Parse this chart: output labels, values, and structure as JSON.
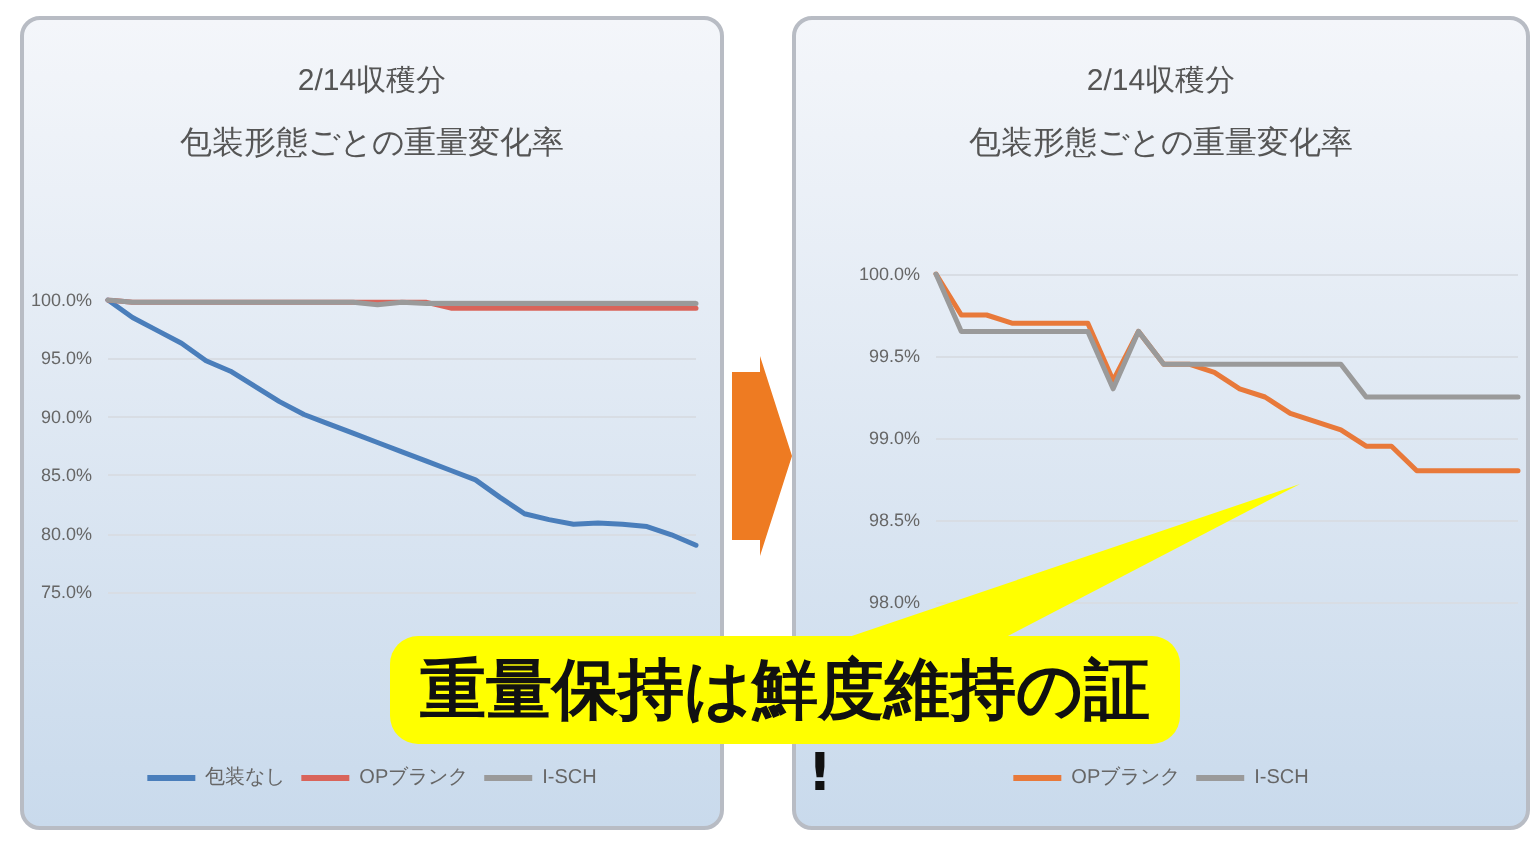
{
  "chart_data": [
    {
      "type": "line",
      "title": "2/14収穫分",
      "subtitle": "包装形態ごとの重量変化率",
      "categories": [
        null,
        null,
        null,
        null,
        null,
        null,
        null,
        null,
        null,
        null,
        null,
        null,
        null,
        null,
        null,
        null,
        null,
        null,
        null,
        null,
        null,
        null,
        null,
        null,
        null
      ],
      "series": [
        {
          "name": "包装なし",
          "color": "#4a7ebb",
          "values": [
            100,
            98.5,
            97.4,
            96.3,
            94.8,
            93.9,
            92.6,
            91.3,
            90.2,
            89.4,
            88.6,
            87.8,
            87.0,
            86.2,
            85.4,
            84.6,
            83.1,
            81.7,
            81.2,
            80.8,
            80.9,
            80.8,
            80.6,
            79.9,
            79.0
          ]
        },
        {
          "name": "OPブランク",
          "color": "#d9645a",
          "values": [
            100,
            99.8,
            99.8,
            99.8,
            99.8,
            99.8,
            99.8,
            99.8,
            99.8,
            99.8,
            99.8,
            99.8,
            99.8,
            99.8,
            99.3,
            99.3,
            99.3,
            99.3,
            99.3,
            99.3,
            99.3,
            99.3,
            99.3,
            99.3,
            99.3
          ]
        },
        {
          "name": "I-SCH",
          "color": "#9a9a9a",
          "values": [
            100,
            99.8,
            99.8,
            99.8,
            99.8,
            99.8,
            99.8,
            99.8,
            99.8,
            99.8,
            99.8,
            99.6,
            99.8,
            99.7,
            99.7,
            99.7,
            99.7,
            99.7,
            99.7,
            99.7,
            99.7,
            99.7,
            99.7,
            99.7,
            99.7
          ]
        }
      ],
      "ylim": [
        75,
        100
      ],
      "yticks": [
        {
          "value": 75,
          "label": "75.0%"
        },
        {
          "value": 80,
          "label": "80.0%"
        },
        {
          "value": 85,
          "label": "85.0%"
        },
        {
          "value": 90,
          "label": "90.0%"
        },
        {
          "value": 95,
          "label": "95.0%"
        },
        {
          "value": 100,
          "label": "100.0%"
        }
      ],
      "grid": "y",
      "legend": "bottom",
      "marker": "none",
      "line_style": "solid",
      "tick_labels": "y"
    },
    {
      "type": "line",
      "title": "2/14収穫分",
      "subtitle": "包装形態ごとの重量変化率",
      "categories": [
        null,
        null,
        null,
        null,
        null,
        null,
        null,
        null,
        null,
        null,
        null,
        null,
        null,
        null,
        null,
        null,
        null,
        null,
        null,
        null,
        null,
        null,
        null,
        null
      ],
      "series": [
        {
          "name": "OPブランク",
          "color": "#e8793a",
          "values": [
            100,
            99.75,
            99.75,
            99.7,
            99.7,
            99.7,
            99.7,
            99.35,
            99.65,
            99.45,
            99.45,
            99.4,
            99.3,
            99.25,
            99.15,
            99.1,
            99.05,
            98.95,
            98.95,
            98.8,
            98.8,
            98.8,
            98.8,
            98.8
          ]
        },
        {
          "name": "I-SCH",
          "color": "#9a9a9a",
          "values": [
            100,
            99.65,
            99.65,
            99.65,
            99.65,
            99.65,
            99.65,
            99.3,
            99.65,
            99.45,
            99.45,
            99.45,
            99.45,
            99.45,
            99.45,
            99.45,
            99.45,
            99.25,
            99.25,
            99.25,
            99.25,
            99.25,
            99.25,
            99.25
          ]
        }
      ],
      "ylim": [
        98,
        100
      ],
      "yticks": [
        {
          "value": 98,
          "label": "98.0%"
        },
        {
          "value": 98.5,
          "label": "98.5%"
        },
        {
          "value": 99,
          "label": "99.0%"
        },
        {
          "value": 99.5,
          "label": "99.5%"
        },
        {
          "value": 100,
          "label": "100.0%"
        }
      ],
      "grid": "y",
      "legend": "bottom",
      "marker": "none",
      "line_style": "solid",
      "tick_labels": "y",
      "annotations": [
        "重量保持は鮮度維持の証",
        "!"
      ]
    }
  ]
}
